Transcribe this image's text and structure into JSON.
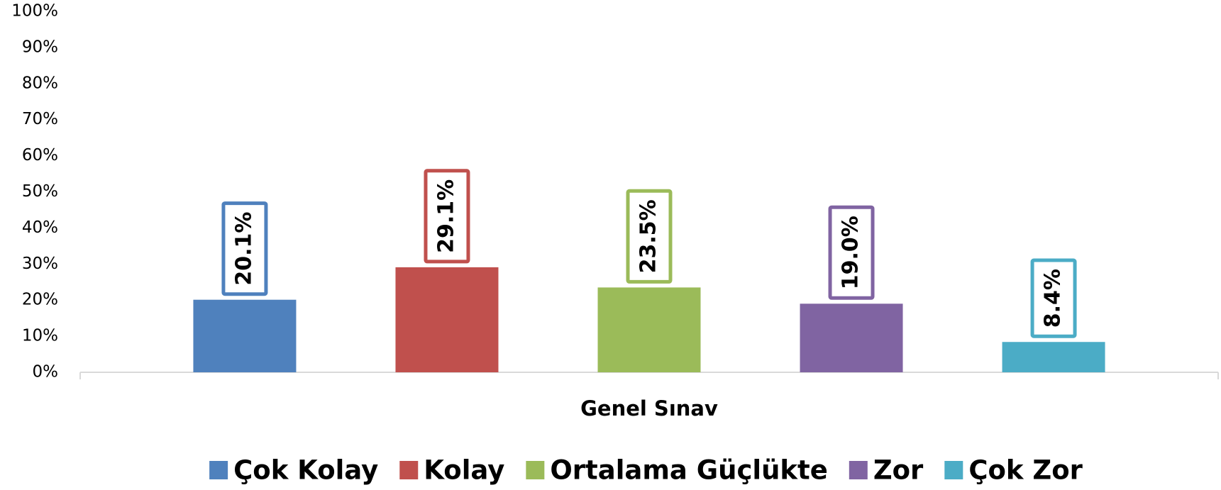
{
  "chart_data": {
    "type": "bar",
    "categories": [
      "Genel Sınav"
    ],
    "series": [
      {
        "name": "Çok Kolay",
        "color": "#4f81bd",
        "values": [
          20.1
        ],
        "value_labels": [
          "20.1%"
        ]
      },
      {
        "name": "Kolay",
        "color": "#c0504d",
        "values": [
          29.1
        ],
        "value_labels": [
          "29.1%"
        ]
      },
      {
        "name": "Ortalama Güçlükte",
        "color": "#9bbb59",
        "values": [
          23.5
        ],
        "value_labels": [
          "23.5%"
        ]
      },
      {
        "name": "Zor",
        "color": "#8064a2",
        "values": [
          19.0
        ],
        "value_labels": [
          "19.0%"
        ]
      },
      {
        "name": "Çok Zor",
        "color": "#4bacc6",
        "values": [
          8.4
        ],
        "value_labels": [
          "8.4%"
        ]
      }
    ],
    "ylim": [
      0,
      100
    ],
    "yticks": [
      {
        "value": 0,
        "label": "0%"
      },
      {
        "value": 10,
        "label": "10%"
      },
      {
        "value": 20,
        "label": "20%"
      },
      {
        "value": 30,
        "label": "30%"
      },
      {
        "value": 40,
        "label": "40%"
      },
      {
        "value": 50,
        "label": "50%"
      },
      {
        "value": 60,
        "label": "60%"
      },
      {
        "value": 70,
        "label": "70%"
      },
      {
        "value": 80,
        "label": "80%"
      },
      {
        "value": 90,
        "label": "90%"
      },
      {
        "value": 100,
        "label": "100%"
      }
    ],
    "grid": false,
    "legend": "bottom"
  }
}
